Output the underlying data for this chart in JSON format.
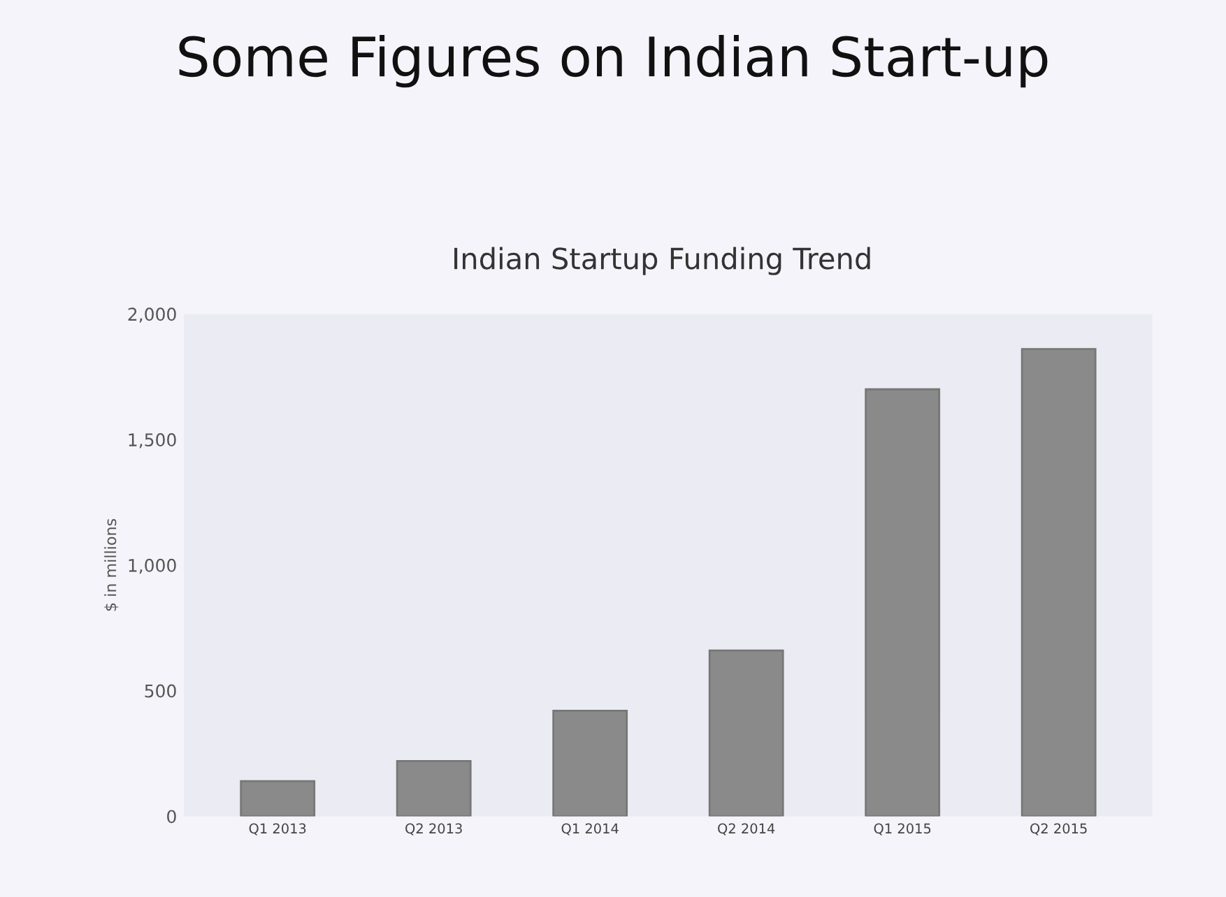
{
  "chart_data": {
    "type": "bar",
    "title": "Some Figures on Indian Start-up",
    "subtitle": "Indian Startup Funding Trend",
    "ylabel": "$ in millions",
    "categories": [
      "Q1 2013",
      "Q2 2013",
      "Q1 2014",
      "Q2 2014",
      "Q1 2015",
      "Q2 2015"
    ],
    "values": [
      140,
      220,
      420,
      660,
      1700,
      1860
    ],
    "color": "#8a8a8a",
    "ylim": [
      0,
      2000
    ],
    "yticks": [
      {
        "value": 0,
        "label": "0"
      },
      {
        "value": 500,
        "label": "500"
      },
      {
        "value": 1000,
        "label": "1,000"
      },
      {
        "value": 1500,
        "label": "1,500"
      },
      {
        "value": 2000,
        "label": "2,000"
      }
    ],
    "grid": false
  }
}
